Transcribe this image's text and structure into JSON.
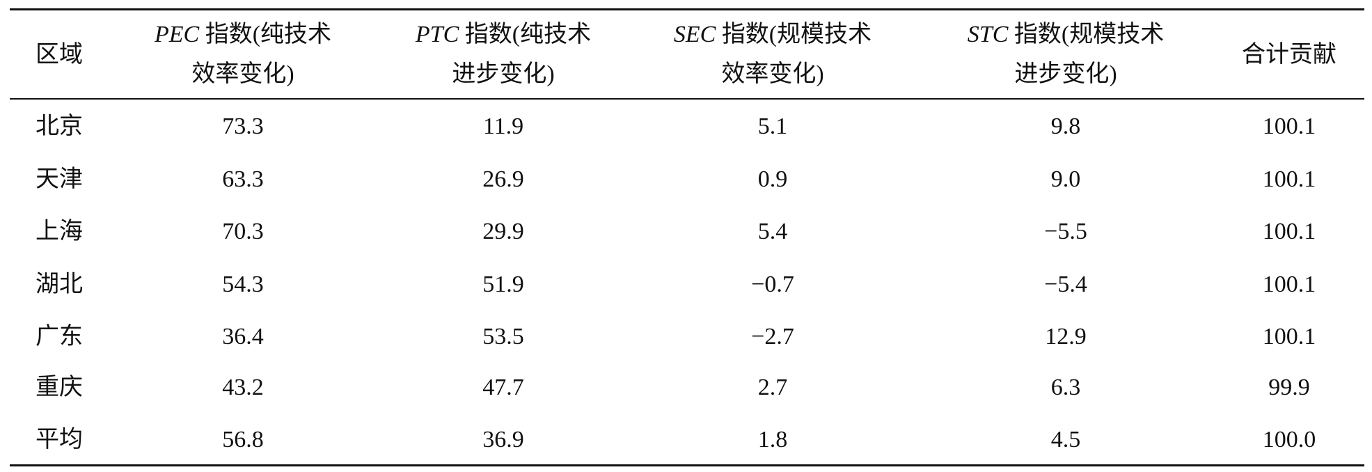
{
  "table": {
    "header": [
      {
        "text": "区域"
      },
      {
        "abbr": "PEC",
        "line1": "指数(纯技术",
        "line2": "效率变化)"
      },
      {
        "abbr": "PTC",
        "line1": "指数(纯技术",
        "line2": "进步变化)"
      },
      {
        "abbr": "SEC",
        "line1": "指数(规模技术",
        "line2": "效率变化)"
      },
      {
        "abbr": "STC",
        "line1": "指数(规模技术",
        "line2": "进步变化)"
      },
      {
        "text": "合计贡献"
      }
    ],
    "rows": [
      [
        "北京",
        "73.3",
        "11.9",
        "5.1",
        "9.8",
        "100.1"
      ],
      [
        "天津",
        "63.3",
        "26.9",
        "0.9",
        "9.0",
        "100.1"
      ],
      [
        "上海",
        "70.3",
        "29.9",
        "5.4",
        "−5.5",
        "100.1"
      ],
      [
        "湖北",
        "54.3",
        "51.9",
        "−0.7",
        "−5.4",
        "100.1"
      ],
      [
        "广东",
        "36.4",
        "53.5",
        "−2.7",
        "12.9",
        "100.1"
      ],
      [
        "重庆",
        "43.2",
        "47.7",
        "2.7",
        "6.3",
        "99.9"
      ],
      [
        "平均",
        "56.8",
        "36.9",
        "1.8",
        "4.5",
        "100.0"
      ]
    ]
  }
}
